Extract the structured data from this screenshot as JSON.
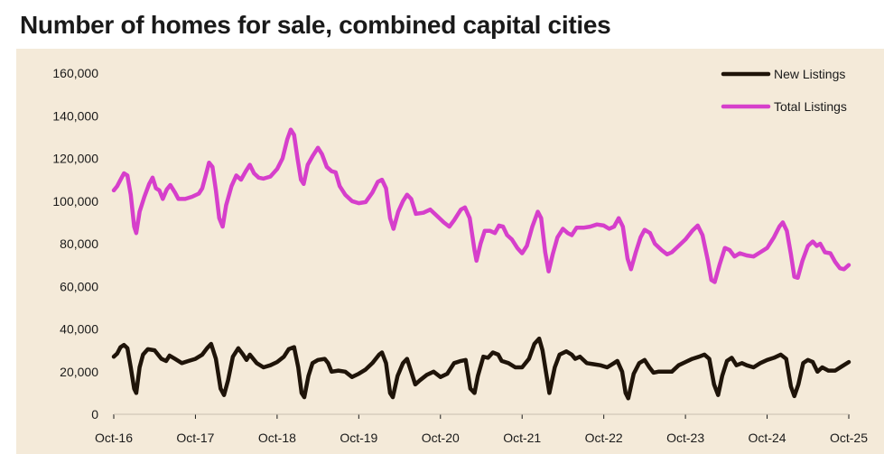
{
  "chart_data": {
    "type": "line",
    "title": "Number of homes for sale, combined capital cities",
    "xlabel": "",
    "ylabel": "",
    "ylim": [
      0,
      160000
    ],
    "yticks": [
      "160,000",
      "140,000",
      "120,000",
      "100,000",
      "80,000",
      "60,000",
      "40,000",
      "20,000",
      "0"
    ],
    "ytick_values": [
      160000,
      140000,
      120000,
      100000,
      80000,
      60000,
      40000,
      20000,
      0
    ],
    "xticks": [
      "Oct-16",
      "Oct-17",
      "Oct-18",
      "Oct-19",
      "Oct-20",
      "Oct-21",
      "Oct-22",
      "Oct-23",
      "Oct-24",
      "Oct-25"
    ],
    "xlim_months": [
      0,
      108
    ],
    "grid": false,
    "legend_position": "top-right",
    "series": [
      {
        "name": "New Listings",
        "color": "#1f1409",
        "points": [
          [
            0,
            27000
          ],
          [
            0.5,
            28500
          ],
          [
            1,
            31500
          ],
          [
            1.5,
            32500
          ],
          [
            2,
            31000
          ],
          [
            2.5,
            22000
          ],
          [
            3,
            12000
          ],
          [
            3.3,
            10000
          ],
          [
            3.8,
            22000
          ],
          [
            4.3,
            28000
          ],
          [
            5,
            30500
          ],
          [
            6,
            30000
          ],
          [
            7,
            26000
          ],
          [
            7.7,
            25000
          ],
          [
            8.2,
            27500
          ],
          [
            9,
            26000
          ],
          [
            10,
            24000
          ],
          [
            11,
            25000
          ],
          [
            12,
            26000
          ],
          [
            13,
            28000
          ],
          [
            13.7,
            31000
          ],
          [
            14.3,
            33000
          ],
          [
            15,
            26000
          ],
          [
            15.7,
            12000
          ],
          [
            16.2,
            9000
          ],
          [
            16.8,
            16000
          ],
          [
            17.5,
            27000
          ],
          [
            18.3,
            31000
          ],
          [
            19,
            28000
          ],
          [
            19.5,
            25500
          ],
          [
            20,
            28000
          ],
          [
            21,
            24000
          ],
          [
            22,
            22000
          ],
          [
            23,
            23000
          ],
          [
            24,
            24500
          ],
          [
            25,
            27000
          ],
          [
            25.7,
            30500
          ],
          [
            26.5,
            31500
          ],
          [
            27.1,
            22000
          ],
          [
            27.6,
            10000
          ],
          [
            28,
            8000
          ],
          [
            28.6,
            18000
          ],
          [
            29.2,
            24000
          ],
          [
            30,
            25500
          ],
          [
            31,
            26000
          ],
          [
            31.5,
            24000
          ],
          [
            32,
            20000
          ],
          [
            33,
            20500
          ],
          [
            34,
            20000
          ],
          [
            35,
            17500
          ],
          [
            36,
            19000
          ],
          [
            37,
            21000
          ],
          [
            38,
            24000
          ],
          [
            39,
            28000
          ],
          [
            39.4,
            29000
          ],
          [
            40,
            24000
          ],
          [
            40.6,
            10000
          ],
          [
            41,
            8000
          ],
          [
            41.7,
            18000
          ],
          [
            42.5,
            24000
          ],
          [
            43.1,
            26000
          ],
          [
            43.7,
            20000
          ],
          [
            44.3,
            14000
          ],
          [
            45,
            16000
          ],
          [
            46,
            18500
          ],
          [
            47,
            20000
          ],
          [
            48,
            17500
          ],
          [
            49,
            19000
          ],
          [
            50,
            24000
          ],
          [
            51,
            25000
          ],
          [
            51.7,
            25500
          ],
          [
            52.4,
            12000
          ],
          [
            53,
            10000
          ],
          [
            53.5,
            18000
          ],
          [
            54.3,
            27000
          ],
          [
            55,
            26500
          ],
          [
            55.7,
            29000
          ],
          [
            56.5,
            28000
          ],
          [
            57,
            25000
          ],
          [
            58,
            24000
          ],
          [
            59,
            22000
          ],
          [
            60,
            22000
          ],
          [
            61,
            26000
          ],
          [
            61.8,
            33000
          ],
          [
            62.5,
            35500
          ],
          [
            63,
            30000
          ],
          [
            63.5,
            20000
          ],
          [
            64,
            10000
          ],
          [
            64.8,
            22000
          ],
          [
            65.5,
            28000
          ],
          [
            66.5,
            29500
          ],
          [
            67.3,
            28000
          ],
          [
            67.8,
            26000
          ],
          [
            68.5,
            27000
          ],
          [
            69.5,
            24000
          ],
          [
            70.5,
            23500
          ],
          [
            71.5,
            23000
          ],
          [
            72.5,
            22000
          ],
          [
            73.5,
            24000
          ],
          [
            74,
            25000
          ],
          [
            74.7,
            20000
          ],
          [
            75.2,
            10000
          ],
          [
            75.6,
            7500
          ],
          [
            76.4,
            19000
          ],
          [
            77.2,
            24000
          ],
          [
            78,
            25500
          ],
          [
            78.7,
            22000
          ],
          [
            79.3,
            19500
          ],
          [
            80,
            20000
          ],
          [
            81,
            20000
          ],
          [
            82,
            20000
          ],
          [
            83,
            23000
          ],
          [
            84,
            24500
          ],
          [
            85,
            26000
          ],
          [
            86,
            27000
          ],
          [
            86.8,
            28000
          ],
          [
            87.5,
            26000
          ],
          [
            88.2,
            14000
          ],
          [
            88.8,
            9000
          ],
          [
            89.4,
            18000
          ],
          [
            90.1,
            25000
          ],
          [
            90.8,
            26500
          ],
          [
            91.5,
            23000
          ],
          [
            92.3,
            24000
          ],
          [
            93,
            23000
          ],
          [
            94,
            22000
          ],
          [
            95,
            24000
          ],
          [
            96,
            25500
          ],
          [
            97,
            26500
          ],
          [
            98,
            28000
          ],
          [
            98.8,
            26000
          ],
          [
            99.5,
            13000
          ],
          [
            100,
            8500
          ],
          [
            100.6,
            14000
          ],
          [
            101.3,
            24000
          ],
          [
            102,
            25500
          ],
          [
            102.7,
            24500
          ],
          [
            103.4,
            20000
          ],
          [
            104.1,
            22000
          ],
          [
            105,
            20500
          ],
          [
            106,
            20500
          ],
          [
            107,
            22500
          ],
          [
            108,
            24500
          ]
        ]
      },
      {
        "name": "Total Listings",
        "color": "#d63fcb",
        "points": [
          [
            0,
            105000
          ],
          [
            0.5,
            107000
          ],
          [
            1,
            110000
          ],
          [
            1.5,
            113000
          ],
          [
            2,
            112000
          ],
          [
            2.5,
            103000
          ],
          [
            3,
            88000
          ],
          [
            3.3,
            85000
          ],
          [
            3.8,
            95000
          ],
          [
            4.5,
            102000
          ],
          [
            5.2,
            108000
          ],
          [
            5.7,
            111000
          ],
          [
            6.2,
            106000
          ],
          [
            6.7,
            105000
          ],
          [
            7.2,
            101000
          ],
          [
            7.8,
            105500
          ],
          [
            8.3,
            107500
          ],
          [
            9,
            104000
          ],
          [
            9.5,
            101000
          ],
          [
            10.5,
            101000
          ],
          [
            11.5,
            102000
          ],
          [
            12.5,
            103500
          ],
          [
            13,
            106000
          ],
          [
            13.5,
            112000
          ],
          [
            14,
            118000
          ],
          [
            14.5,
            116000
          ],
          [
            15,
            105000
          ],
          [
            15.5,
            92000
          ],
          [
            16,
            88000
          ],
          [
            16.5,
            98000
          ],
          [
            17.3,
            107000
          ],
          [
            18,
            112000
          ],
          [
            18.7,
            110000
          ],
          [
            19.4,
            114000
          ],
          [
            20,
            117000
          ],
          [
            20.6,
            113000
          ],
          [
            21.3,
            111000
          ],
          [
            22,
            110500
          ],
          [
            23,
            111500
          ],
          [
            24,
            115000
          ],
          [
            24.8,
            120000
          ],
          [
            25.5,
            129000
          ],
          [
            26,
            133500
          ],
          [
            26.5,
            131000
          ],
          [
            27,
            120000
          ],
          [
            27.5,
            110000
          ],
          [
            27.9,
            108000
          ],
          [
            28.5,
            117000
          ],
          [
            29.2,
            121000
          ],
          [
            30,
            125000
          ],
          [
            30.6,
            122000
          ],
          [
            31.3,
            116000
          ],
          [
            32,
            114000
          ],
          [
            32.6,
            113500
          ],
          [
            33.2,
            107000
          ],
          [
            34,
            103000
          ],
          [
            35,
            100000
          ],
          [
            36,
            99000
          ],
          [
            37,
            99500
          ],
          [
            38,
            104000
          ],
          [
            38.8,
            109000
          ],
          [
            39.4,
            110000
          ],
          [
            40,
            106000
          ],
          [
            40.6,
            92000
          ],
          [
            41.1,
            87000
          ],
          [
            41.8,
            95000
          ],
          [
            42.5,
            100000
          ],
          [
            43.1,
            103000
          ],
          [
            43.7,
            101000
          ],
          [
            44.4,
            94000
          ],
          [
            45.5,
            94500
          ],
          [
            46.5,
            96000
          ],
          [
            47.5,
            93000
          ],
          [
            48.5,
            90000
          ],
          [
            49.3,
            88000
          ],
          [
            50,
            91000
          ],
          [
            51,
            96000
          ],
          [
            51.6,
            97000
          ],
          [
            52.3,
            92000
          ],
          [
            53,
            77000
          ],
          [
            53.3,
            72000
          ],
          [
            53.9,
            80000
          ],
          [
            54.5,
            86000
          ],
          [
            55.3,
            86000
          ],
          [
            56,
            85000
          ],
          [
            56.6,
            88500
          ],
          [
            57.2,
            88000
          ],
          [
            57.8,
            84000
          ],
          [
            58.5,
            82000
          ],
          [
            59.3,
            78000
          ],
          [
            60,
            75500
          ],
          [
            60.7,
            79000
          ],
          [
            61.5,
            88000
          ],
          [
            62.3,
            95000
          ],
          [
            62.8,
            92000
          ],
          [
            63.4,
            76000
          ],
          [
            63.9,
            67000
          ],
          [
            64.5,
            75000
          ],
          [
            65.2,
            83000
          ],
          [
            66,
            87000
          ],
          [
            66.7,
            85000
          ],
          [
            67.3,
            84000
          ],
          [
            68,
            87500
          ],
          [
            69,
            87500
          ],
          [
            70,
            88000
          ],
          [
            71,
            89000
          ],
          [
            72,
            88500
          ],
          [
            72.8,
            87000
          ],
          [
            73.5,
            88000
          ],
          [
            74.2,
            92000
          ],
          [
            74.8,
            88000
          ],
          [
            75.5,
            73000
          ],
          [
            76,
            68000
          ],
          [
            76.7,
            76000
          ],
          [
            77.4,
            83000
          ],
          [
            78,
            86500
          ],
          [
            78.8,
            85000
          ],
          [
            79.5,
            80000
          ],
          [
            80.5,
            77000
          ],
          [
            81.3,
            75000
          ],
          [
            82,
            76000
          ],
          [
            83,
            79000
          ],
          [
            84,
            82000
          ],
          [
            85,
            86000
          ],
          [
            85.8,
            88500
          ],
          [
            86.5,
            84000
          ],
          [
            87.3,
            72000
          ],
          [
            87.8,
            63000
          ],
          [
            88.3,
            62000
          ],
          [
            89,
            70000
          ],
          [
            89.8,
            78000
          ],
          [
            90.5,
            77000
          ],
          [
            91.2,
            74000
          ],
          [
            92,
            75500
          ],
          [
            93,
            74500
          ],
          [
            94,
            74000
          ],
          [
            95,
            76000
          ],
          [
            96,
            78000
          ],
          [
            97,
            83000
          ],
          [
            97.8,
            88000
          ],
          [
            98.3,
            90000
          ],
          [
            98.9,
            86000
          ],
          [
            99.5,
            75000
          ],
          [
            100,
            64500
          ],
          [
            100.5,
            64000
          ],
          [
            101.2,
            72000
          ],
          [
            102,
            79000
          ],
          [
            102.7,
            81000
          ],
          [
            103.3,
            79000
          ],
          [
            103.8,
            80000
          ],
          [
            104.5,
            76000
          ],
          [
            105.3,
            75500
          ],
          [
            106,
            71500
          ],
          [
            106.7,
            68500
          ],
          [
            107.3,
            68000
          ],
          [
            108,
            70000
          ]
        ]
      }
    ]
  }
}
